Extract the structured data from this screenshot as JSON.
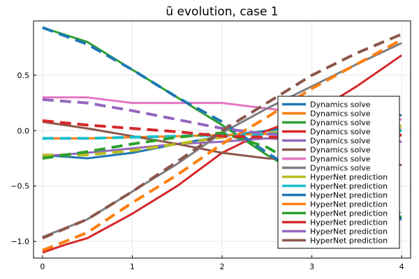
{
  "chart_data": {
    "type": "line",
    "title": "ũ evolution, case 1",
    "xlabel": "",
    "ylabel": "",
    "xlim": [
      -0.1,
      4.1
    ],
    "ylim": [
      -1.15,
      0.99
    ],
    "xticks": [
      0,
      1,
      2,
      3,
      4
    ],
    "xtick_labels": [
      "0",
      "1",
      "2",
      "3",
      "4"
    ],
    "yticks": [
      -1.0,
      -0.5,
      0.0,
      0.5
    ],
    "ytick_labels": [
      "−1.0",
      "−0.5",
      "0.0",
      "0.5"
    ],
    "grid": true,
    "legend_position": "bottom-right",
    "series": [
      {
        "name": "Dynamics solve",
        "color": "#1f77b4",
        "dash": "solid",
        "x": [
          0,
          0.5,
          1,
          1.5,
          2,
          2.5,
          3,
          3.5,
          4
        ],
        "y": [
          -0.22,
          -0.25,
          -0.2,
          -0.12,
          -0.05,
          0.0,
          0.05,
          0.1,
          0.14
        ]
      },
      {
        "name": "Dynamics solve",
        "color": "#ff7f0e",
        "dash": "solid",
        "x": [
          0,
          0.5,
          1,
          1.5,
          2,
          2.5,
          3,
          3.5,
          4
        ],
        "y": [
          -0.07,
          -0.07,
          -0.06,
          -0.05,
          -0.04,
          -0.03,
          -0.01,
          0.0,
          0.01
        ]
      },
      {
        "name": "Dynamics solve",
        "color": "#2ca02c",
        "dash": "solid",
        "x": [
          0,
          0.5,
          1,
          1.5,
          2,
          2.5,
          3,
          3.5,
          4
        ],
        "y": [
          0.93,
          0.8,
          0.55,
          0.3,
          0.05,
          -0.22,
          -0.45,
          -0.65,
          -0.78
        ]
      },
      {
        "name": "Dynamics solve",
        "color": "#d62728",
        "dash": "solid",
        "x": [
          0,
          0.25,
          0.5,
          1,
          1.5,
          2,
          2.5,
          3,
          3.5,
          4
        ],
        "y": [
          -1.1,
          -1.03,
          -0.97,
          -0.75,
          -0.5,
          -0.2,
          0.0,
          0.15,
          0.4,
          0.68
        ]
      },
      {
        "name": "Dynamics solve",
        "color": "#9467bd",
        "dash": "solid",
        "x": [
          0,
          0.5,
          1,
          1.5,
          2,
          2.5,
          3,
          3.5,
          4
        ],
        "y": [
          -0.23,
          -0.2,
          -0.16,
          -0.12,
          -0.1,
          -0.07,
          -0.09,
          -0.1,
          -0.1
        ]
      },
      {
        "name": "Dynamics solve",
        "color": "#8c564b",
        "dash": "solid",
        "x": [
          0,
          0.5,
          1,
          1.5,
          2,
          2.5,
          3,
          3.5,
          4
        ],
        "y": [
          0.08,
          0.02,
          -0.05,
          -0.12,
          -0.2,
          -0.25,
          -0.27,
          -0.29,
          -0.31
        ]
      },
      {
        "name": "Dynamics solve",
        "color": "#e377c2",
        "dash": "solid",
        "x": [
          0,
          0.5,
          1,
          1.5,
          2,
          2.5,
          3,
          3.5,
          4
        ],
        "y": [
          0.3,
          0.3,
          0.25,
          0.25,
          0.25,
          0.2,
          0.15,
          0.12,
          0.1
        ]
      },
      {
        "name": "Dynamics solve",
        "color": "#7f7f7f",
        "dash": "solid",
        "x": [
          0,
          0.5,
          1,
          1.5,
          2,
          2.5,
          3,
          3.5,
          4
        ],
        "y": [
          -0.96,
          -0.8,
          -0.55,
          -0.3,
          -0.02,
          0.2,
          0.4,
          0.6,
          0.79
        ]
      },
      {
        "name": "HyperNet prediction",
        "color": "#bcbd22",
        "dash": "dashed",
        "x": [
          0,
          0.5,
          1,
          1.5,
          2,
          2.5,
          3,
          3.5,
          4
        ],
        "y": [
          -0.22,
          -0.22,
          -0.18,
          -0.12,
          -0.06,
          -0.02,
          0.0,
          0.02,
          0.04
        ]
      },
      {
        "name": "HyperNet prediction",
        "color": "#17becf",
        "dash": "dashed",
        "x": [
          0,
          0.5,
          1,
          1.5,
          2,
          2.5,
          3,
          3.5,
          4
        ],
        "y": [
          -0.07,
          -0.07,
          -0.06,
          -0.05,
          -0.04,
          -0.03,
          -0.02,
          -0.01,
          0.0
        ]
      },
      {
        "name": "HyperNet prediction",
        "color": "#1f77b4",
        "dash": "dashed",
        "x": [
          0,
          0.5,
          1,
          1.5,
          2,
          2.5,
          3,
          3.5,
          4
        ],
        "y": [
          0.93,
          0.78,
          0.55,
          0.3,
          0.08,
          -0.2,
          -0.45,
          -0.65,
          -0.8
        ]
      },
      {
        "name": "HyperNet prediction",
        "color": "#ff7f0e",
        "dash": "dashed",
        "x": [
          0,
          0.5,
          1,
          1.5,
          2,
          2.5,
          3,
          3.5,
          4
        ],
        "y": [
          -1.08,
          -0.92,
          -0.65,
          -0.4,
          -0.12,
          0.12,
          0.38,
          0.6,
          0.82
        ]
      },
      {
        "name": "HyperNet prediction",
        "color": "#2ca02c",
        "dash": "dashed",
        "x": [
          0,
          0.5,
          1,
          1.5,
          2,
          2.5,
          3,
          3.5,
          4
        ],
        "y": [
          -0.25,
          -0.19,
          -0.12,
          -0.06,
          -0.02,
          -0.15,
          -0.38,
          -0.6,
          -0.75
        ]
      },
      {
        "name": "HyperNet prediction",
        "color": "#d62728",
        "dash": "dashed",
        "x": [
          0,
          0.5,
          1,
          1.5,
          2,
          2.5,
          3,
          3.5,
          4
        ],
        "y": [
          0.09,
          0.05,
          0.02,
          -0.01,
          -0.05,
          -0.06,
          -0.06,
          -0.05,
          -0.04
        ]
      },
      {
        "name": "HyperNet prediction",
        "color": "#9467bd",
        "dash": "dashed",
        "x": [
          0,
          0.5,
          1,
          1.5,
          2,
          2.5,
          3,
          3.5,
          4
        ],
        "y": [
          0.28,
          0.25,
          0.18,
          0.1,
          0.02,
          -0.03,
          -0.05,
          -0.03,
          -0.02
        ]
      },
      {
        "name": "HyperNet prediction",
        "color": "#8c564b",
        "dash": "dashed",
        "x": [
          0,
          0.5,
          1,
          1.5,
          2,
          2.5,
          3,
          3.5,
          4
        ],
        "y": [
          -0.97,
          -0.8,
          -0.55,
          -0.28,
          0.0,
          0.25,
          0.5,
          0.7,
          0.87
        ]
      }
    ]
  }
}
